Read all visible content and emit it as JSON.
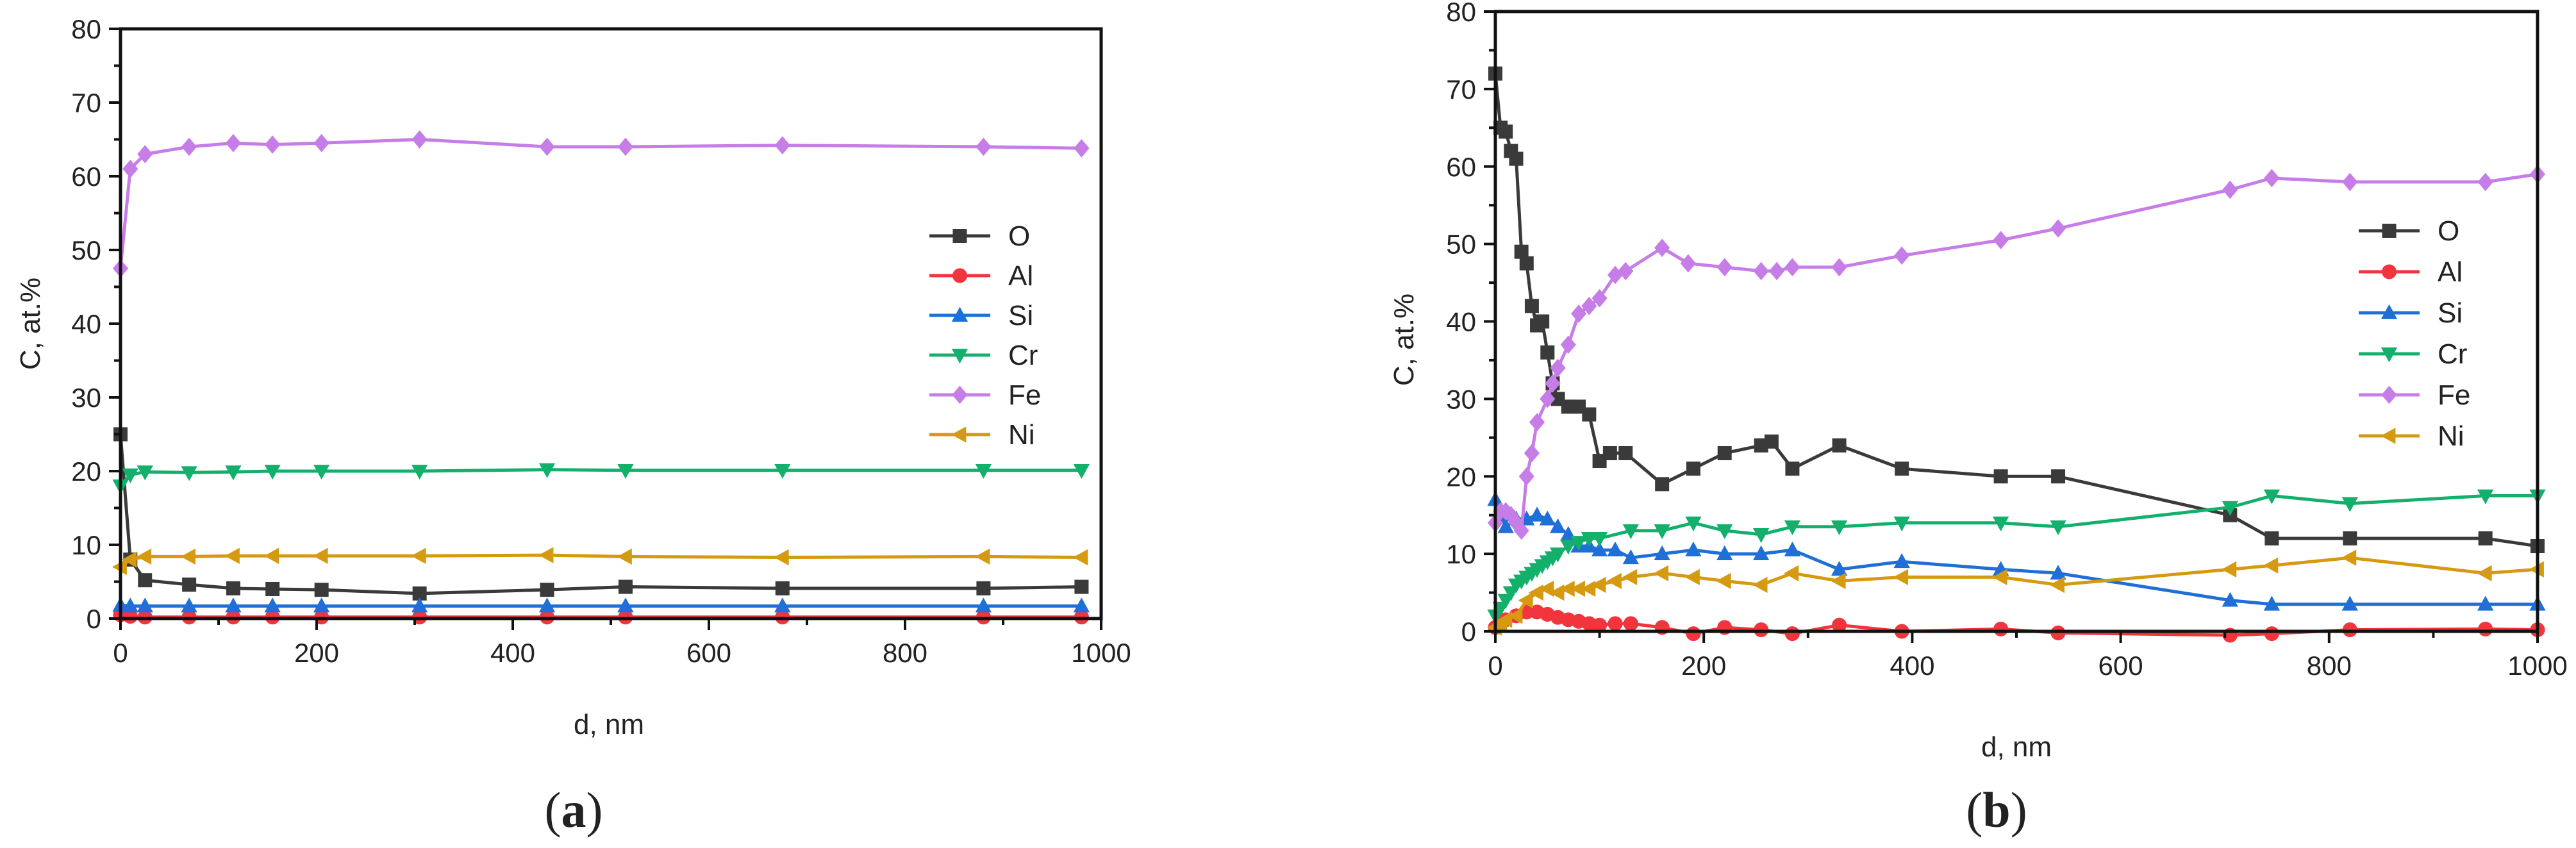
{
  "colors": {
    "O": "#3a3a3a",
    "Al": "#f2353d",
    "Si": "#1f6fd6",
    "Cr": "#13b06c",
    "Fe": "#c77de8",
    "Ni": "#d69a10"
  },
  "markers": {
    "O": "square",
    "Al": "circle",
    "Si": "triangle-up",
    "Cr": "triangle-down",
    "Fe": "diamond",
    "Ni": "triangle-left"
  },
  "chart_data": [
    {
      "type": "line",
      "caption_letter": "a",
      "xlabel": "d, nm",
      "ylabel": "C, at.%",
      "xlim": [
        0,
        1000
      ],
      "ylim": [
        0,
        80
      ],
      "xticks": [
        0,
        200,
        400,
        600,
        800,
        1000
      ],
      "yticks": [
        0,
        10,
        20,
        30,
        40,
        50,
        60,
        70,
        80
      ],
      "legend_position": "right-middle",
      "series": [
        {
          "name": "O",
          "x": [
            0,
            10,
            25,
            70,
            115,
            155,
            205,
            305,
            435,
            515,
            675,
            880,
            980
          ],
          "y": [
            25,
            8,
            5.2,
            4.6,
            4.1,
            4.0,
            3.9,
            3.4,
            3.9,
            4.3,
            4.1,
            4.1,
            4.3
          ]
        },
        {
          "name": "Al",
          "x": [
            0,
            10,
            25,
            70,
            115,
            155,
            205,
            305,
            435,
            515,
            675,
            880,
            980
          ],
          "y": [
            0.5,
            0.3,
            0.2,
            0.2,
            0.2,
            0.2,
            0.2,
            0.2,
            0.2,
            0.2,
            0.2,
            0.2,
            0.2
          ]
        },
        {
          "name": "Si",
          "x": [
            0,
            10,
            25,
            70,
            115,
            155,
            205,
            305,
            435,
            515,
            675,
            880,
            980
          ],
          "y": [
            1.8,
            1.7,
            1.7,
            1.7,
            1.7,
            1.7,
            1.7,
            1.7,
            1.7,
            1.7,
            1.7,
            1.7,
            1.7
          ]
        },
        {
          "name": "Cr",
          "x": [
            0,
            10,
            25,
            70,
            115,
            155,
            205,
            305,
            435,
            515,
            675,
            880,
            980
          ],
          "y": [
            18,
            19.5,
            19.9,
            19.8,
            19.9,
            20.0,
            20.0,
            20.0,
            20.2,
            20.1,
            20.1,
            20.1,
            20.1
          ]
        },
        {
          "name": "Fe",
          "x": [
            0,
            10,
            25,
            70,
            115,
            155,
            205,
            305,
            435,
            515,
            675,
            880,
            980
          ],
          "y": [
            47.5,
            61,
            63,
            64,
            64.5,
            64.3,
            64.5,
            65,
            64,
            64,
            64.2,
            64,
            63.8
          ]
        },
        {
          "name": "Ni",
          "x": [
            0,
            10,
            25,
            70,
            115,
            155,
            205,
            305,
            435,
            515,
            675,
            880,
            980
          ],
          "y": [
            7,
            8,
            8.4,
            8.4,
            8.5,
            8.5,
            8.5,
            8.5,
            8.6,
            8.4,
            8.3,
            8.4,
            8.3
          ]
        }
      ]
    },
    {
      "type": "line",
      "caption_letter": "b",
      "xlabel": "d, nm",
      "ylabel": "C, at.%",
      "xlim": [
        0,
        1000
      ],
      "ylim": [
        0,
        80
      ],
      "xticks": [
        0,
        200,
        400,
        600,
        800,
        1000
      ],
      "yticks": [
        0,
        10,
        20,
        30,
        40,
        50,
        60,
        70,
        80
      ],
      "legend_position": "right-middle",
      "series": [
        {
          "name": "O",
          "x": [
            0,
            5,
            10,
            15,
            20,
            25,
            30,
            35,
            40,
            45,
            50,
            55,
            60,
            70,
            80,
            90,
            100,
            110,
            125,
            160,
            190,
            220,
            255,
            265,
            285,
            330,
            390,
            485,
            540,
            705,
            745,
            820,
            950,
            1000
          ],
          "y": [
            72,
            65,
            64.5,
            62,
            61,
            49,
            47.5,
            42,
            39.5,
            40,
            36,
            32,
            30,
            29,
            29,
            28,
            22,
            23,
            23,
            19,
            21,
            23,
            24,
            24.5,
            21,
            24,
            21,
            20,
            20,
            15,
            12,
            12,
            12,
            11
          ]
        },
        {
          "name": "Al",
          "x": [
            0,
            5,
            10,
            20,
            30,
            40,
            50,
            60,
            70,
            80,
            90,
            100,
            115,
            130,
            160,
            190,
            220,
            255,
            285,
            330,
            390,
            485,
            540,
            705,
            745,
            820,
            950,
            1000
          ],
          "y": [
            0.5,
            1,
            1.5,
            2,
            2.5,
            2.5,
            2.2,
            1.8,
            1.5,
            1.3,
            1.0,
            0.8,
            1.0,
            1.0,
            0.5,
            -0.3,
            0.5,
            0.2,
            -0.3,
            0.8,
            0,
            0.3,
            -0.2,
            -0.5,
            -0.3,
            0.2,
            0.3,
            0.2
          ]
        },
        {
          "name": "Si",
          "x": [
            0,
            5,
            10,
            20,
            30,
            40,
            50,
            60,
            70,
            80,
            90,
            100,
            115,
            130,
            160,
            190,
            220,
            255,
            285,
            330,
            390,
            485,
            540,
            705,
            745,
            820,
            950,
            1000
          ],
          "y": [
            17,
            15,
            13.5,
            14.5,
            14.5,
            15,
            14.5,
            13.5,
            12.5,
            11,
            11,
            10.5,
            10.5,
            9.5,
            10,
            10.5,
            10,
            10,
            10.5,
            8,
            9,
            8,
            7.5,
            4,
            3.5,
            3.5,
            3.5,
            3.5
          ]
        },
        {
          "name": "Cr",
          "x": [
            0,
            5,
            10,
            15,
            20,
            25,
            30,
            35,
            40,
            45,
            50,
            55,
            60,
            70,
            80,
            90,
            100,
            130,
            160,
            190,
            220,
            255,
            285,
            330,
            390,
            485,
            540,
            705,
            745,
            820,
            950,
            1000
          ],
          "y": [
            2,
            3,
            4,
            5,
            6,
            6.5,
            7,
            7.5,
            8,
            8.5,
            9,
            9.5,
            10,
            11,
            11.5,
            12,
            12,
            13,
            13,
            14,
            13,
            12.5,
            13.5,
            13.5,
            14,
            14,
            13.5,
            16,
            17.5,
            16.5,
            17.5,
            17.5
          ]
        },
        {
          "name": "Fe",
          "x": [
            0,
            5,
            10,
            15,
            20,
            25,
            30,
            35,
            40,
            50,
            55,
            60,
            70,
            80,
            90,
            100,
            115,
            125,
            160,
            185,
            220,
            255,
            270,
            285,
            330,
            390,
            485,
            540,
            705,
            745,
            820,
            950,
            1000
          ],
          "y": [
            14,
            15.5,
            15.5,
            15,
            14,
            13,
            20,
            23,
            27,
            30,
            32,
            34,
            37,
            41,
            42,
            43,
            46,
            46.5,
            49.5,
            47.5,
            47,
            46.5,
            46.5,
            47,
            47,
            48.5,
            50.5,
            52,
            57,
            58.5,
            58,
            58,
            59
          ]
        },
        {
          "name": "Ni",
          "x": [
            0,
            5,
            10,
            20,
            30,
            40,
            50,
            60,
            70,
            80,
            90,
            100,
            115,
            130,
            160,
            190,
            220,
            255,
            285,
            330,
            390,
            485,
            540,
            705,
            745,
            820,
            950,
            1000
          ],
          "y": [
            0.5,
            1,
            1.5,
            2,
            4,
            5,
            5.5,
            5,
            5.5,
            5.5,
            5.5,
            6,
            6.5,
            7,
            7.5,
            7,
            6.5,
            6,
            7.5,
            6.5,
            7,
            7,
            6,
            8,
            8.5,
            9.5,
            7.5,
            8
          ]
        }
      ]
    }
  ]
}
